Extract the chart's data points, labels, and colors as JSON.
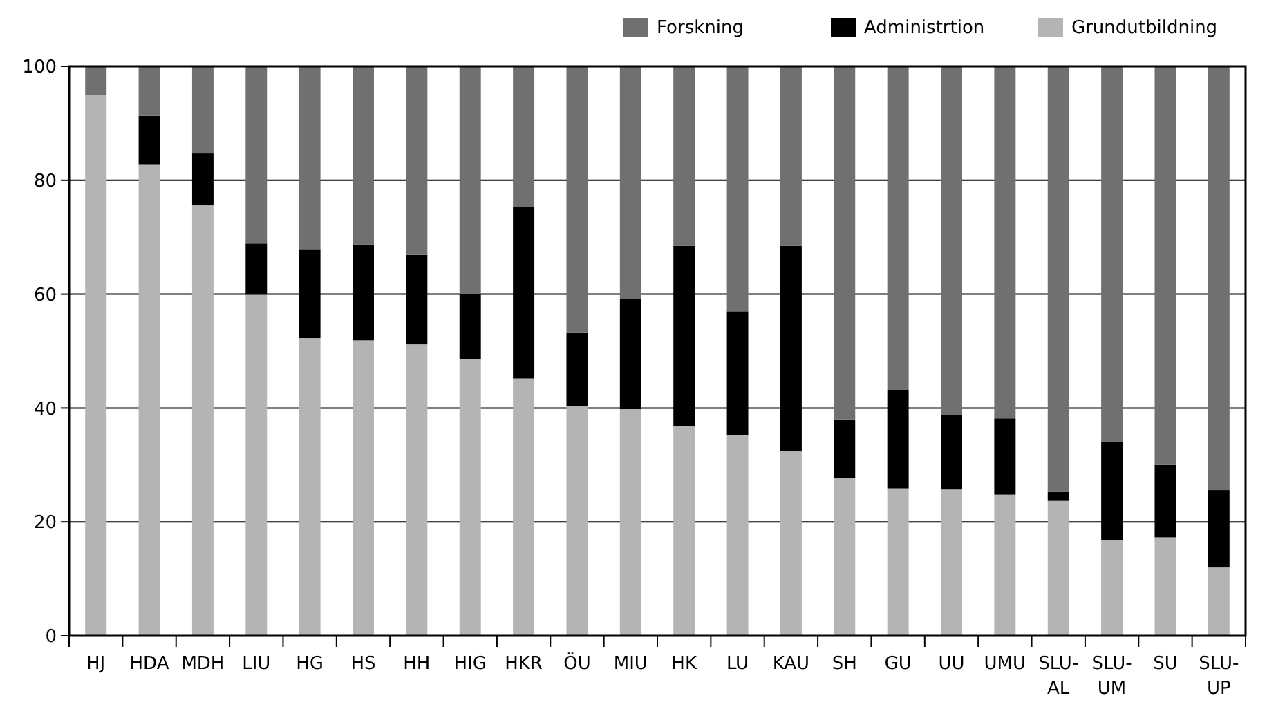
{
  "chart_data": {
    "type": "bar",
    "stacked": true,
    "categories": [
      "HJ",
      "HDA",
      "MDH",
      "LIU",
      "HG",
      "HS",
      "HH",
      "HIG",
      "HKR",
      "ÖU",
      "MIU",
      "HK",
      "LU",
      "KAU",
      "SH",
      "GU",
      "UU",
      "UMU",
      "SLU-AL",
      "SLU-UM",
      "SU",
      "SLU-UP"
    ],
    "series": [
      {
        "name": "Grundutbildning",
        "color": "#b4b4b4",
        "values": [
          95,
          82.7,
          75.6,
          59.9,
          52.3,
          51.9,
          51.2,
          48.6,
          45.2,
          40.4,
          39.8,
          36.8,
          35.3,
          32.4,
          27.7,
          25.9,
          25.7,
          24.8,
          23.7,
          16.8,
          17.3,
          12
        ]
      },
      {
        "name": "Administrtion",
        "color": "#000000",
        "values": [
          0,
          8.6,
          9.1,
          9,
          15.5,
          16.8,
          15.7,
          11.4,
          30.1,
          12.8,
          19.4,
          31.7,
          21.7,
          36.1,
          10.2,
          17.3,
          13.1,
          13.4,
          1.6,
          17.2,
          12.7,
          13.6
        ]
      },
      {
        "name": "Forskning",
        "color": "#707070",
        "values": [
          5,
          8.7,
          15.3,
          31.1,
          32.2,
          31.3,
          33.1,
          40,
          24.7,
          46.8,
          40.8,
          31.5,
          43,
          31.5,
          62.1,
          56.8,
          61.2,
          61.8,
          74.7,
          66,
          70,
          74.4
        ]
      }
    ],
    "ylim": [
      0,
      100
    ],
    "yticks": [
      0,
      20,
      40,
      60,
      80,
      100
    ],
    "grid": "y",
    "legend": "top right"
  }
}
